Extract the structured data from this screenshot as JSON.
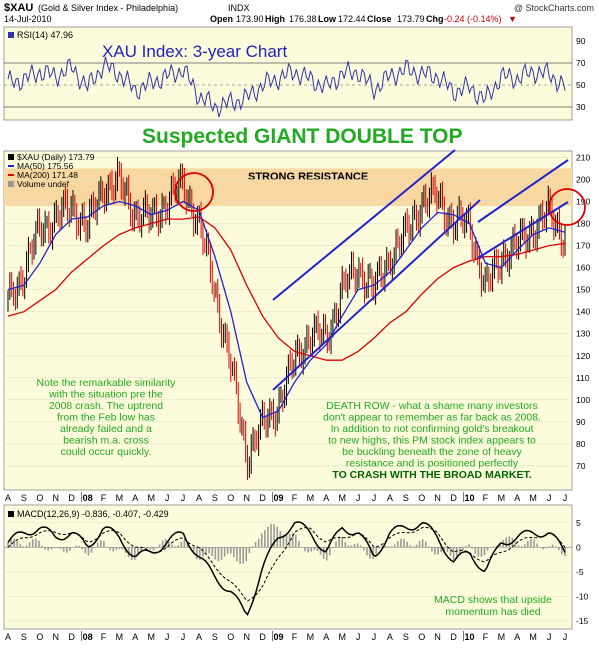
{
  "header": {
    "symbol": "$XAU",
    "name": "(Gold & Silver Index - Philadelphia)",
    "exchange": "INDX",
    "watermark": "@ StockCharts.com",
    "date": "14-Jul-2010",
    "open_label": "Open",
    "open": "173.90",
    "high_label": "High",
    "high": "176.38",
    "low_label": "Low",
    "low": "172.44",
    "close_label": "Close",
    "close": "173.79",
    "chg_label": "Chg",
    "chg": "-0.24 (-0.14%)",
    "chg_arrow": "▼"
  },
  "rsi": {
    "label": "RSI(14) 47.96",
    "annotation": "XAU Index: 3-year Chart",
    "ticks": [
      90,
      70,
      50,
      30
    ],
    "color": "#3333aa"
  },
  "main": {
    "headline": "Suspected GIANT DOUBLE TOP",
    "legend": [
      {
        "label": "$XAU (Daily) 173.79",
        "color": "#000000",
        "kind": "bar"
      },
      {
        "label": "MA(50) 175.56",
        "color": "#2222cc",
        "kind": "line"
      },
      {
        "label": "MA(200) 171.48",
        "color": "#dd0000",
        "kind": "line"
      },
      {
        "label": "Volume undef",
        "color": "#999999",
        "kind": "box"
      }
    ],
    "resistance_label": "STRONG RESISTANCE",
    "y_ticks": [
      210,
      200,
      190,
      180,
      170,
      160,
      150,
      140,
      130,
      120,
      110,
      100,
      90,
      80,
      70
    ],
    "note_left": [
      "Note the remarkable similarity",
      "with the situation pre the",
      "2008 crash. The uptrend",
      "from the Feb low has",
      "already failed and a",
      "bearish m.a. cross",
      "could occur quickly."
    ],
    "note_right": [
      "DEATH ROW - what a shame many investors",
      "don't appear to remember as far back as 2008.",
      "In addition to not confirming gold's breakout",
      "to new highs, this PM stock index appears to",
      "be buckling beneath the zone of heavy",
      "resistance and is positioned perfectly",
      "TO CRASH WITH THE BROAD MARKET."
    ]
  },
  "x_axis": [
    "A",
    "S",
    "O",
    "N",
    "D",
    "08",
    "F",
    "M",
    "A",
    "M",
    "J",
    "J",
    "A",
    "S",
    "O",
    "N",
    "D",
    "09",
    "F",
    "M",
    "A",
    "M",
    "J",
    "J",
    "A",
    "S",
    "O",
    "N",
    "D",
    "10",
    "F",
    "M",
    "A",
    "M",
    "J",
    "J"
  ],
  "macd": {
    "label": "MACD(12,26,9) -0.836, -0.407, -0.429",
    "ticks": [
      5,
      0,
      -5,
      -10,
      -15
    ],
    "note": [
      "MACD shows that upside",
      "momentum has died"
    ]
  },
  "colors": {
    "panel_bg": "#fcfcdc",
    "resistance": "#f8d8a0",
    "headline": "#22aa22",
    "note": "#22aa22",
    "note_caps": "#006600",
    "channel": "#2222cc",
    "circle": "#dd0000"
  },
  "chart_data": {
    "type": "line",
    "title": "$XAU (Gold & Silver Index - Philadelphia)",
    "xlabel": "",
    "ylabel": "",
    "ylim": [
      60,
      212
    ],
    "months": [
      "A",
      "S",
      "O",
      "N",
      "D",
      "08",
      "F",
      "M",
      "A",
      "M",
      "J",
      "J",
      "A",
      "S",
      "O",
      "N",
      "D",
      "09",
      "F",
      "M",
      "A",
      "M",
      "J",
      "J",
      "A",
      "S",
      "O",
      "N",
      "D",
      "10",
      "F",
      "M",
      "A",
      "M",
      "J",
      "J"
    ],
    "series": [
      {
        "name": "$XAU (Daily) 173.79",
        "values": [
          145,
          158,
          178,
          182,
          188,
          178,
          197,
          198,
          185,
          182,
          190,
          198,
          180,
          150,
          115,
          75,
          88,
          98,
          118,
          130,
          128,
          150,
          160,
          150,
          165,
          175,
          190,
          192,
          180,
          180,
          150,
          165,
          170,
          178,
          185,
          174
        ]
      },
      {
        "name": "MA(50) 175.56",
        "values": [
          150,
          152,
          162,
          175,
          182,
          183,
          188,
          190,
          188,
          184,
          186,
          190,
          186,
          165,
          140,
          108,
          92,
          95,
          108,
          118,
          125,
          138,
          150,
          152,
          158,
          168,
          178,
          185,
          184,
          180,
          162,
          160,
          168,
          175,
          178,
          176
        ]
      },
      {
        "name": "MA(200) 171.48",
        "values": [
          138,
          140,
          145,
          150,
          158,
          164,
          170,
          175,
          178,
          180,
          182,
          182,
          183,
          178,
          168,
          152,
          138,
          128,
          122,
          120,
          118,
          118,
          122,
          128,
          135,
          140,
          148,
          155,
          160,
          163,
          165,
          165,
          166,
          168,
          170,
          171
        ]
      }
    ],
    "rsi": [
      52,
      55,
      62,
      58,
      66,
      48,
      68,
      60,
      45,
      52,
      58,
      64,
      40,
      30,
      34,
      38,
      50,
      56,
      62,
      55,
      48,
      60,
      62,
      46,
      58,
      64,
      60,
      58,
      44,
      48,
      36,
      58,
      56,
      62,
      60,
      48
    ],
    "macd": [
      1,
      3,
      4,
      2,
      3,
      0,
      4,
      2,
      -2,
      -1,
      1,
      3,
      -2,
      -6,
      -9,
      -14,
      -4,
      2,
      5,
      3,
      -1,
      4,
      3,
      -2,
      3,
      4,
      5,
      2,
      -3,
      -1,
      -5,
      1,
      2,
      3,
      3,
      -1
    ],
    "macd_signal": [
      0,
      2,
      3,
      3,
      3,
      1,
      3,
      3,
      0,
      -1,
      0,
      2,
      0,
      -4,
      -7,
      -11,
      -8,
      -2,
      3,
      4,
      1,
      2,
      3,
      0,
      2,
      3,
      4,
      3,
      -1,
      -1,
      -3,
      -1,
      1,
      2,
      3,
      0
    ],
    "resistance_zone": [
      188,
      205
    ]
  }
}
